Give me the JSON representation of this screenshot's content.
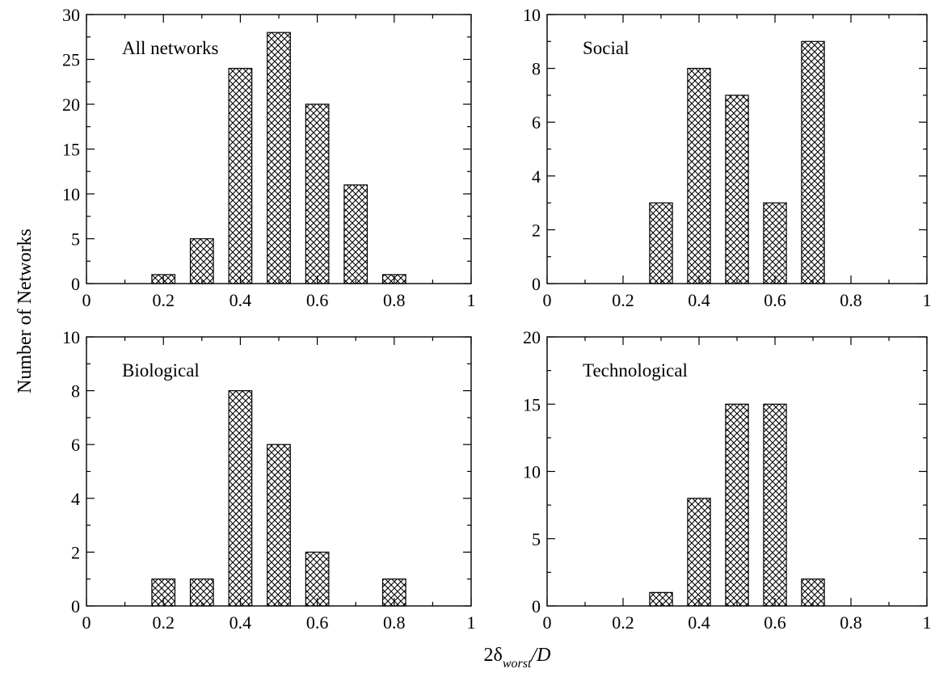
{
  "chart_data": [
    {
      "type": "bar",
      "title": "All networks",
      "x": [
        0.2,
        0.3,
        0.4,
        0.5,
        0.6,
        0.7,
        0.8
      ],
      "values": [
        1,
        5,
        24,
        28,
        20,
        11,
        1
      ],
      "xlim": [
        0,
        1
      ],
      "ylim": [
        0,
        30
      ],
      "xticks": [
        "0",
        "0.2",
        "0.4",
        "0.6",
        "0.8",
        "1"
      ],
      "yticks": [
        "0",
        "5",
        "10",
        "15",
        "20",
        "25",
        "30"
      ],
      "bar_fill": "crosshatch"
    },
    {
      "type": "bar",
      "title": "Social",
      "x": [
        0.3,
        0.4,
        0.5,
        0.6,
        0.7
      ],
      "values": [
        3,
        8,
        7,
        3,
        9
      ],
      "xlim": [
        0,
        1
      ],
      "ylim": [
        0,
        10
      ],
      "xticks": [
        "0",
        "0.2",
        "0.4",
        "0.6",
        "0.8",
        "1"
      ],
      "yticks": [
        "0",
        "2",
        "4",
        "6",
        "8",
        "10"
      ],
      "bar_fill": "crosshatch"
    },
    {
      "type": "bar",
      "title": "Biological",
      "x": [
        0.2,
        0.3,
        0.4,
        0.5,
        0.6,
        0.8
      ],
      "values": [
        1,
        1,
        8,
        6,
        2,
        1
      ],
      "xlim": [
        0,
        1
      ],
      "ylim": [
        0,
        10
      ],
      "xticks": [
        "0",
        "0.2",
        "0.4",
        "0.6",
        "0.8",
        "1"
      ],
      "yticks": [
        "0",
        "2",
        "4",
        "6",
        "8",
        "10"
      ],
      "bar_fill": "crosshatch"
    },
    {
      "type": "bar",
      "title": "Technological",
      "x": [
        0.3,
        0.4,
        0.5,
        0.6,
        0.7
      ],
      "values": [
        1,
        8,
        15,
        15,
        2
      ],
      "xlim": [
        0,
        1
      ],
      "ylim": [
        0,
        20
      ],
      "xticks": [
        "0",
        "0.2",
        "0.4",
        "0.6",
        "0.8",
        "1"
      ],
      "yticks": [
        "0",
        "5",
        "10",
        "15",
        "20"
      ],
      "bar_fill": "crosshatch"
    }
  ],
  "shared": {
    "ylabel": "Number of Networks",
    "xlabel_prefix": "2δ",
    "xlabel_subscript": "worst",
    "xlabel_suffix": "/D"
  },
  "colors": {
    "axis": "#000000",
    "bar_stroke": "#000000",
    "background": "#ffffff"
  }
}
